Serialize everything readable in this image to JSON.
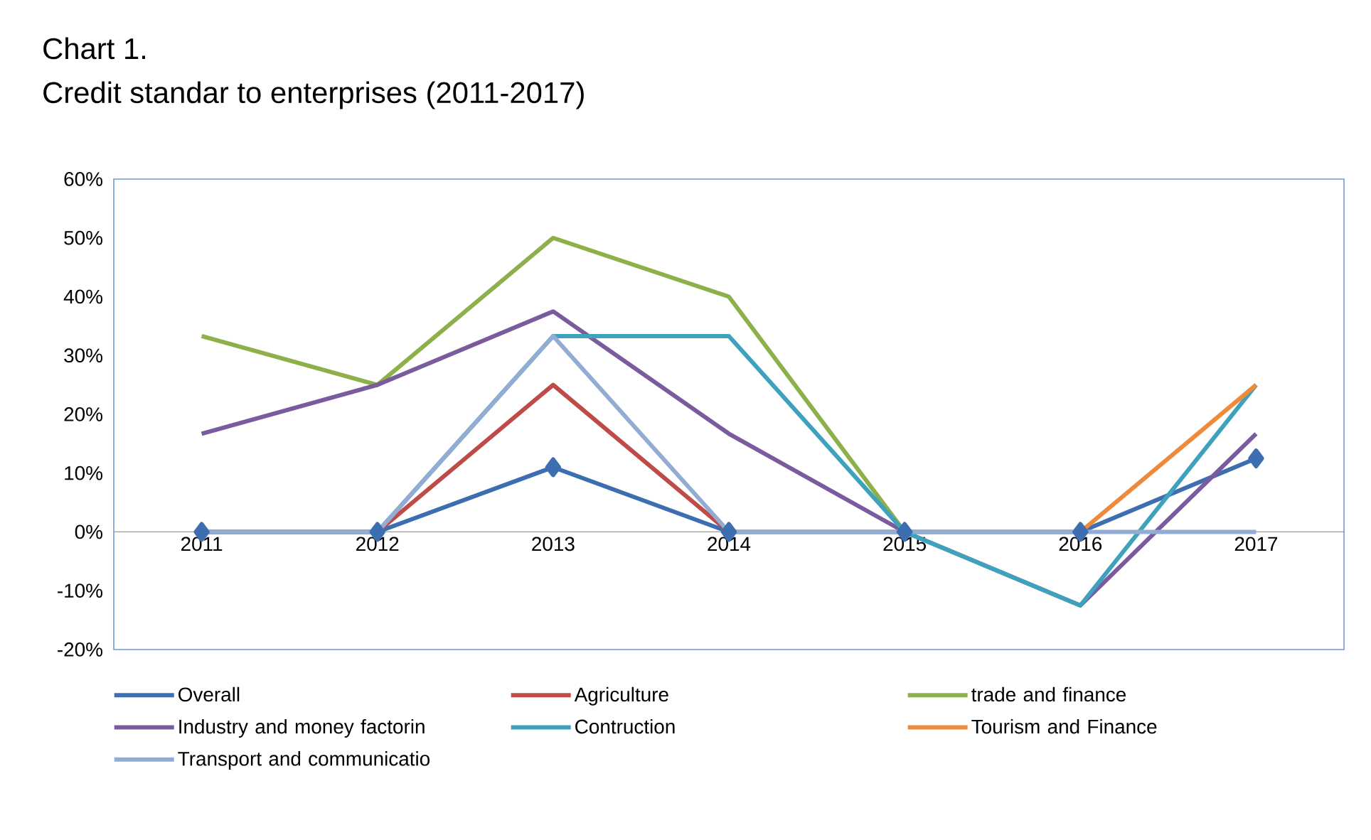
{
  "chart_data": {
    "type": "line",
    "title": "Chart 1.",
    "subtitle": "Credit standar to enterprises (2011-2017)",
    "categories": [
      "2011",
      "2012",
      "2013",
      "2014",
      "2015",
      "2016",
      "2017"
    ],
    "ylim": [
      -20,
      60
    ],
    "yticks": [
      {
        "value": -20,
        "label": "-20%"
      },
      {
        "value": -10,
        "label": "-10%"
      },
      {
        "value": 0,
        "label": "0%"
      },
      {
        "value": 10,
        "label": "10%"
      },
      {
        "value": 20,
        "label": "20%"
      },
      {
        "value": 30,
        "label": "30%"
      },
      {
        "value": 40,
        "label": "40%"
      },
      {
        "value": 50,
        "label": "50%"
      },
      {
        "value": 60,
        "label": "60%"
      }
    ],
    "legend": "bottom",
    "grid": false,
    "series": [
      {
        "name": "Overall",
        "color": "#3c6eb0",
        "marker": "diamond",
        "values": [
          0,
          0,
          11,
          0,
          0,
          0,
          12.5
        ]
      },
      {
        "name": "Agriculture",
        "color": "#be4b48",
        "values": [
          null,
          0,
          25,
          0,
          null,
          null,
          null
        ]
      },
      {
        "name": "trade and finance",
        "color": "#8db04a",
        "values": [
          33.3,
          25,
          50,
          40,
          0,
          null,
          null
        ]
      },
      {
        "name": "Industry and money factorin",
        "color": "#7a5c9e",
        "values": [
          16.7,
          25,
          37.5,
          16.7,
          0,
          -12.5,
          16.7
        ]
      },
      {
        "name": "Contruction",
        "color": "#3ea2bd",
        "values": [
          0,
          0,
          33.3,
          33.3,
          0,
          -12.5,
          25
        ]
      },
      {
        "name": "Tourism and Finance",
        "color": "#ee8a3c",
        "values": [
          null,
          null,
          null,
          null,
          null,
          0,
          25
        ]
      },
      {
        "name": "Transport and communicatio",
        "color": "#93acd3",
        "values": [
          0,
          0,
          33.3,
          0,
          0,
          0,
          0
        ]
      }
    ]
  }
}
